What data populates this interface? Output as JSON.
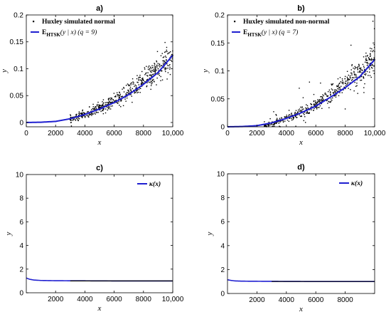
{
  "chart_data": [
    {
      "panel": "a)",
      "type": "scatter",
      "xlabel": "x",
      "ylabel": "y",
      "xlim": [
        0,
        10000
      ],
      "ylim": [
        -0.008,
        0.2
      ],
      "xticks": [
        0,
        2000,
        4000,
        6000,
        8000,
        10000
      ],
      "xtick_labels": [
        "0",
        "2000",
        "4000",
        "6000",
        "8000",
        "10,000"
      ],
      "yticks": [
        0,
        0.05,
        0.1,
        0.15,
        0.2
      ],
      "ytick_labels": [
        "0",
        "0.05",
        "0.1",
        "0.15",
        "0.2"
      ],
      "legend_position": "top-left",
      "series": [
        {
          "name": "Huxley simulated normal",
          "kind": "scatter",
          "color": "#000000",
          "x": [
            3000,
            3500,
            4000,
            4500,
            5000,
            5500,
            6000,
            6500,
            7000,
            7500,
            8000,
            8500,
            9000,
            9500,
            10000
          ],
          "y": [
            0.005,
            0.01,
            0.015,
            0.02,
            0.027,
            0.033,
            0.04,
            0.048,
            0.058,
            0.068,
            0.078,
            0.088,
            0.1,
            0.112,
            0.125
          ]
        },
        {
          "legend_label": "E",
          "legend_sub": "HTSK",
          "legend_suffix": "(y | x) (q = 9)",
          "kind": "line",
          "color": "#1f1fd0",
          "x": [
            0,
            1000,
            2000,
            3000,
            4000,
            5000,
            6000,
            7000,
            8000,
            9000,
            10000
          ],
          "y": [
            0,
            0.0005,
            0.002,
            0.007,
            0.015,
            0.025,
            0.037,
            0.052,
            0.071,
            0.093,
            0.125
          ]
        }
      ]
    },
    {
      "panel": "b)",
      "type": "scatter",
      "xlabel": "x",
      "ylabel": "y",
      "xlim": [
        0,
        10000
      ],
      "ylim": [
        0,
        0.2
      ],
      "xticks": [
        0,
        2000,
        4000,
        6000,
        8000,
        10000
      ],
      "xtick_labels": [
        "0",
        "2000",
        "4000",
        "6000",
        "8000",
        "10,000"
      ],
      "yticks": [
        0,
        0.05,
        0.1,
        0.15,
        0.2
      ],
      "ytick_labels": [
        "0",
        "0.05",
        "0.1",
        "0.15",
        "0.2"
      ],
      "legend_position": "top-left",
      "series": [
        {
          "name": "Huxley simulated non-normal",
          "kind": "scatter",
          "color": "#000000",
          "x": [
            2500,
            3000,
            3500,
            4000,
            4500,
            5000,
            5500,
            6000,
            6500,
            7000,
            7500,
            8000,
            8500,
            9000,
            9500,
            10000
          ],
          "y": [
            0.003,
            0.005,
            0.01,
            0.015,
            0.02,
            0.026,
            0.032,
            0.04,
            0.048,
            0.058,
            0.068,
            0.078,
            0.088,
            0.1,
            0.11,
            0.12
          ]
        },
        {
          "legend_label": "E",
          "legend_sub": "HTSK",
          "legend_suffix": "(y | x) (q = 7)",
          "kind": "line",
          "color": "#1f1fd0",
          "x": [
            0,
            1000,
            2000,
            3000,
            4000,
            5000,
            6000,
            7000,
            8000,
            9000,
            10000
          ],
          "y": [
            0,
            0.0005,
            0.002,
            0.007,
            0.015,
            0.025,
            0.037,
            0.053,
            0.07,
            0.09,
            0.12
          ]
        }
      ]
    },
    {
      "panel": "c)",
      "type": "line",
      "xlabel": "x",
      "ylabel": "y",
      "xlim": [
        0,
        10000
      ],
      "ylim": [
        0,
        10
      ],
      "xticks": [
        2000,
        4000,
        6000,
        8000,
        10000
      ],
      "xtick_labels": [
        "2000",
        "4000",
        "6000",
        "8000",
        "10,000"
      ],
      "yticks": [
        0,
        2,
        4,
        6,
        8,
        10
      ],
      "ytick_labels": [
        "0",
        "2",
        "4",
        "6",
        "8",
        "10"
      ],
      "legend_position": "top-right",
      "series": [
        {
          "name": "κ(x)",
          "kind": "line",
          "color": "#1f1fd0",
          "x": [
            0,
            200,
            500,
            1000,
            2000,
            4000,
            6000,
            8000,
            10000
          ],
          "y": [
            1.25,
            1.15,
            1.08,
            1.04,
            1.02,
            1.01,
            1.0,
            1.0,
            1.0
          ]
        }
      ]
    },
    {
      "panel": "d)",
      "type": "line",
      "xlabel": "x",
      "ylabel": "y",
      "xlim": [
        0,
        10000
      ],
      "ylim": [
        0,
        10
      ],
      "xticks": [
        2000,
        4000,
        6000,
        8000
      ],
      "xtick_labels": [
        "2000",
        "4000",
        "6000",
        "8000"
      ],
      "yticks": [
        0,
        2,
        4,
        6,
        8,
        10
      ],
      "ytick_labels": [
        "0",
        "2",
        "4",
        "6",
        "8",
        "10"
      ],
      "legend_position": "top-right",
      "series": [
        {
          "name": "κ(x)",
          "kind": "line",
          "color": "#1f1fd0",
          "x": [
            0,
            200,
            500,
            1000,
            2000,
            4000,
            6000,
            8000,
            10000
          ],
          "y": [
            1.15,
            1.1,
            1.05,
            1.03,
            1.02,
            1.01,
            1.0,
            1.0,
            1.0
          ]
        }
      ]
    }
  ]
}
